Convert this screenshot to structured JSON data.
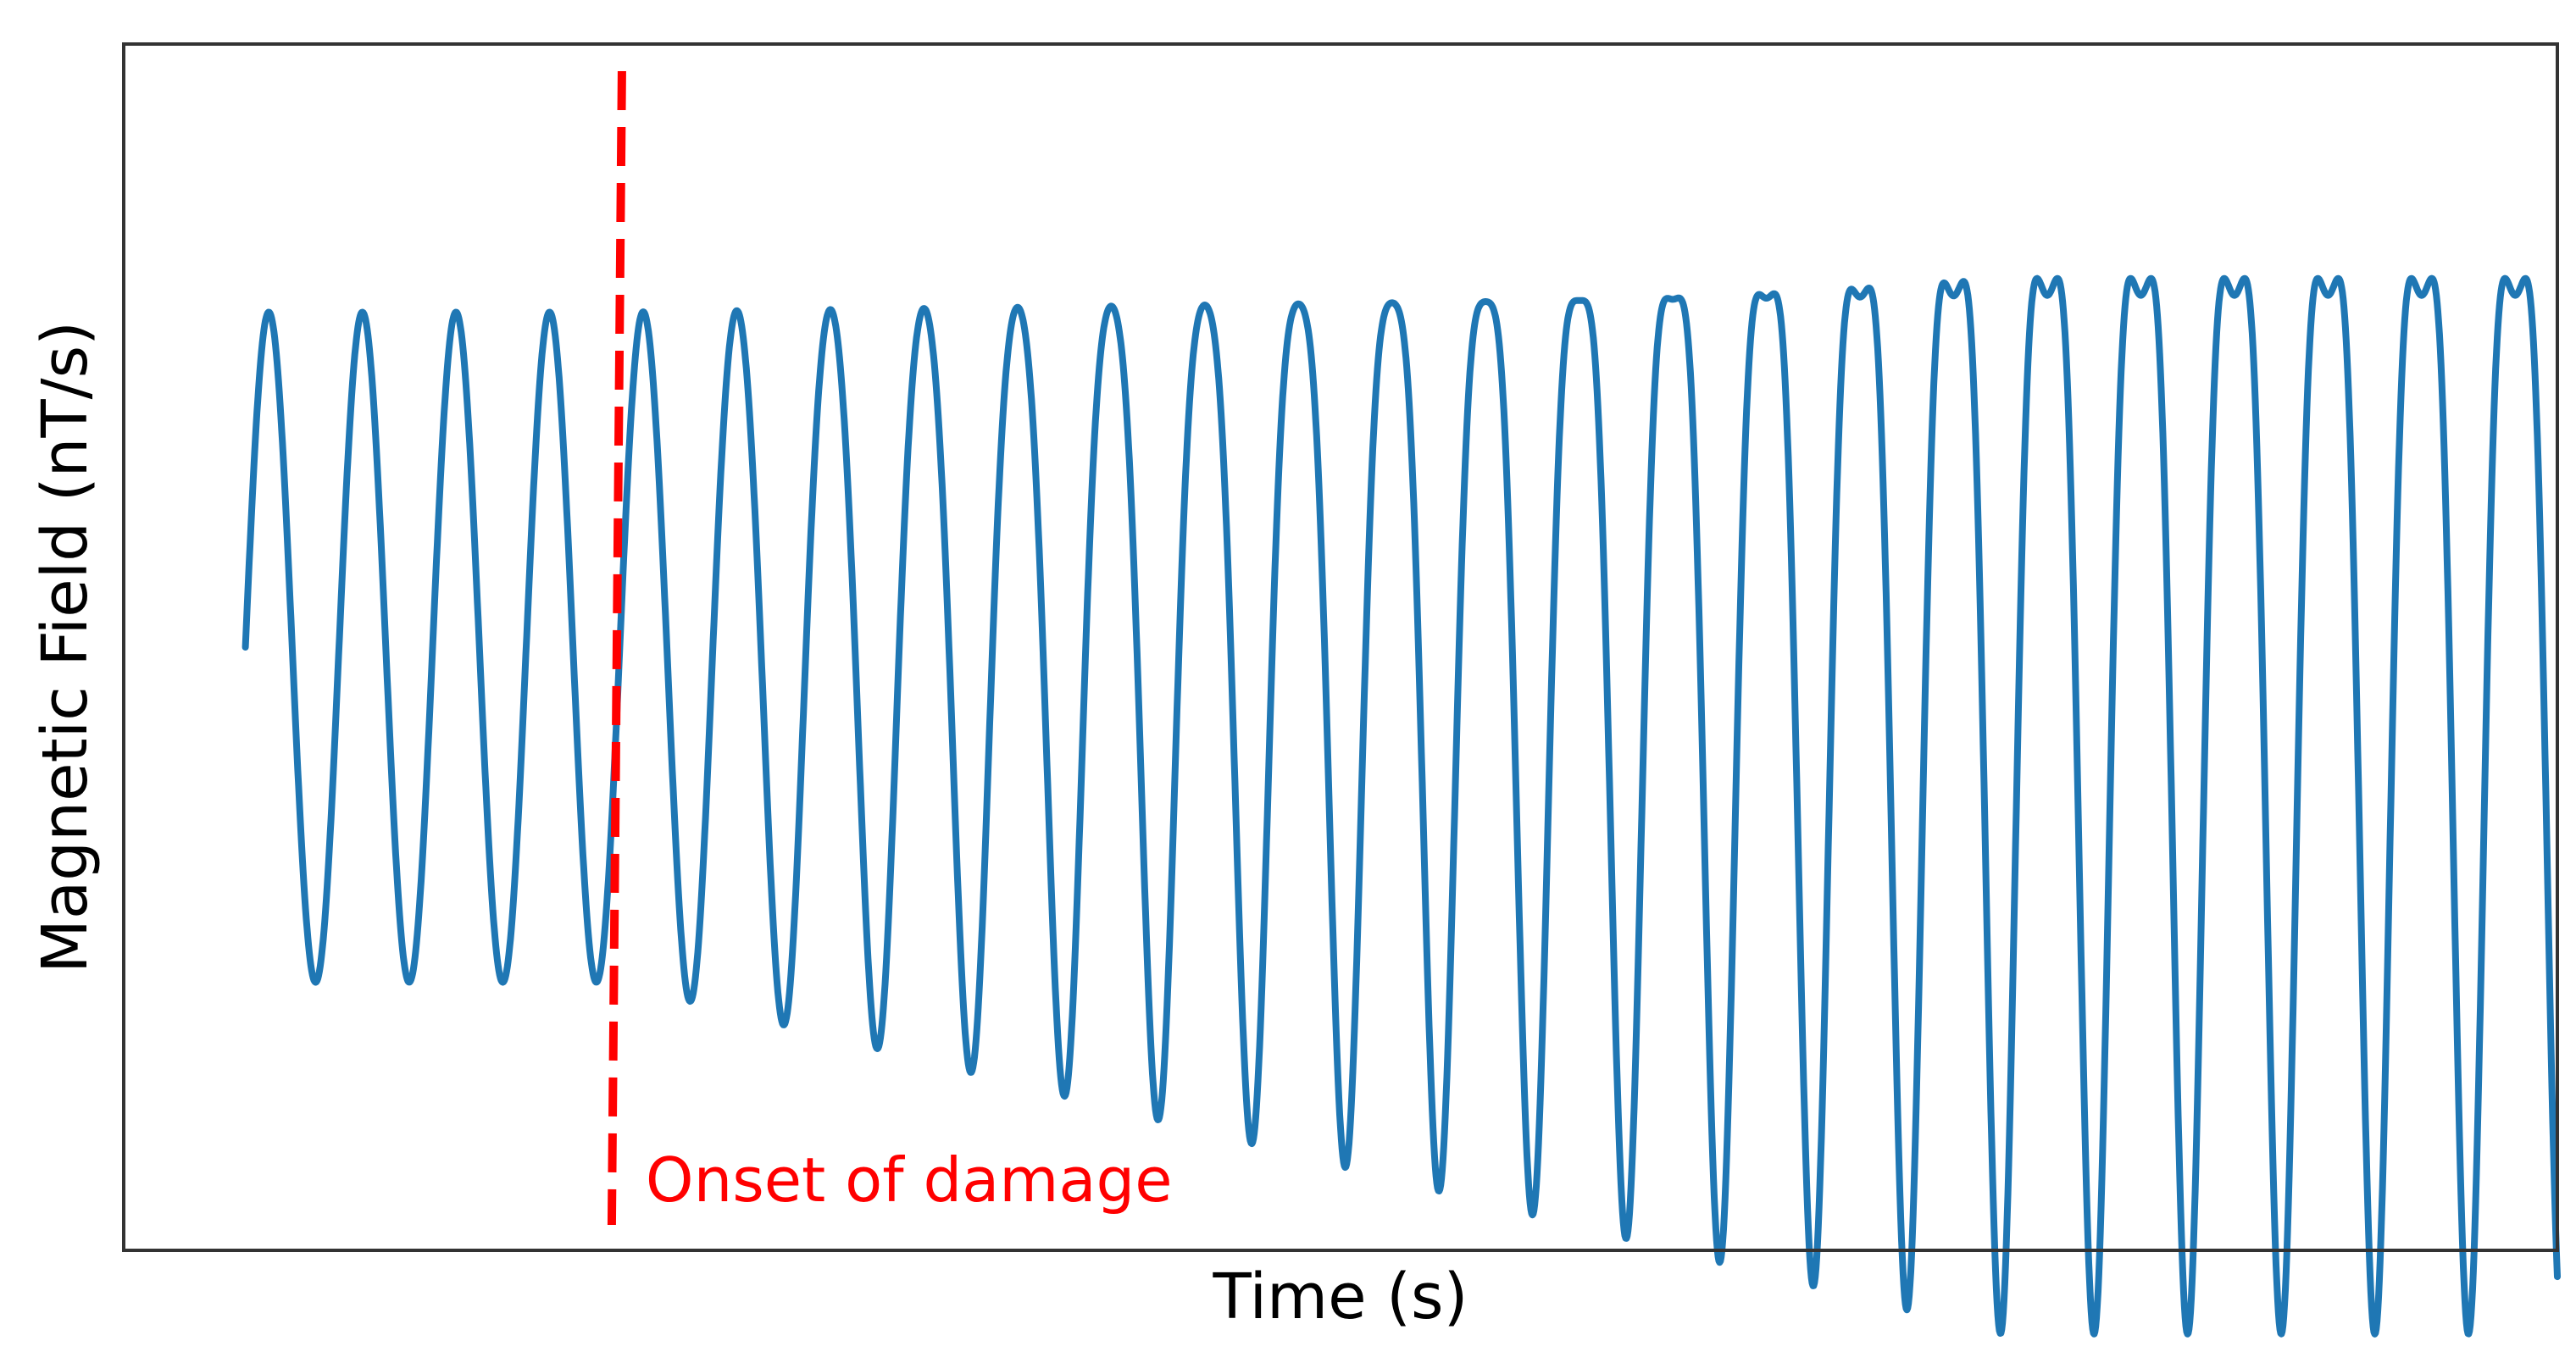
{
  "chart_data": {
    "type": "line",
    "xlabel": "Time (s)",
    "ylabel": "Magnetic Field (nT/s)",
    "xlim": [
      0,
      52
    ],
    "ylim": [
      -1.8,
      1.8
    ],
    "grid": false,
    "ticks": false,
    "series": [
      {
        "color": "#1f77b4",
        "pre_onset": {
          "x_end": 10.5,
          "amplitude": 1.0,
          "frequency": 0.5
        },
        "post_onset": {
          "x_end": 52,
          "carrier_frequency": 0.5,
          "carrier_amplitude_start": 1.0,
          "carrier_amplitude_end": 1.55,
          "second_harmonic_amplitude_end": 0.5
        }
      }
    ],
    "annotations": [
      {
        "type": "vline",
        "x": 10.5,
        "color": "#ff0000",
        "style": "dashed",
        "label": "Onset of damage"
      }
    ]
  }
}
